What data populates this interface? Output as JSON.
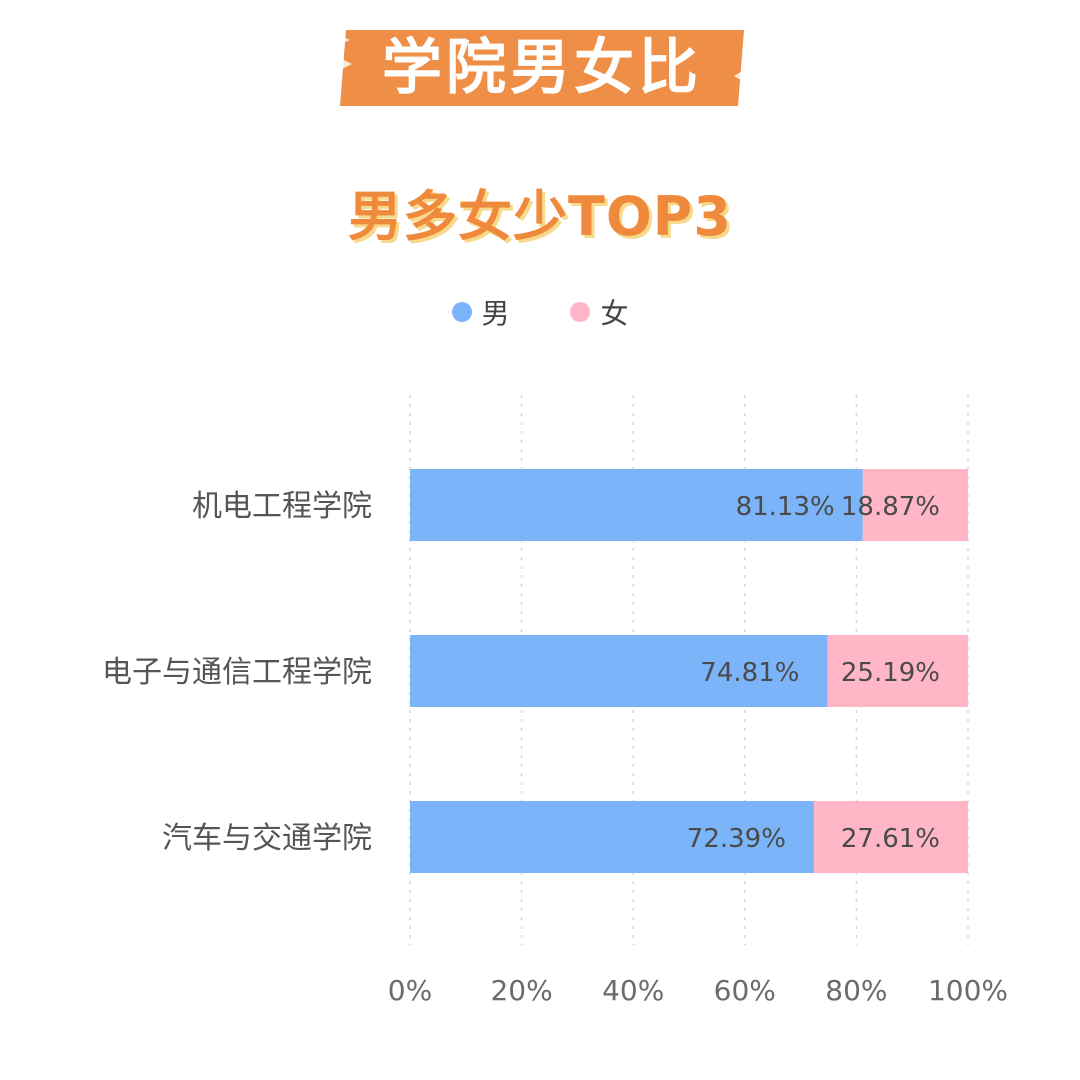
{
  "header": {
    "title": "学院男女比",
    "subtitle": "男多女少TOP3"
  },
  "colors": {
    "banner": "#ef8f47",
    "male": "#7bb4f8",
    "female": "#ffb6c6",
    "subtitle": "#ef8a3c",
    "subtitle_shadow": "#f7d98c"
  },
  "chart_data": {
    "type": "bar",
    "orientation": "horizontal",
    "stacked": true,
    "legend_position": "top",
    "grid": true,
    "categories": [
      "机电工程学院",
      "电子与通信工程学院",
      "汽车与交通学院"
    ],
    "series": [
      {
        "name": "男",
        "values": [
          81.13,
          74.81,
          72.39
        ],
        "labels": [
          "81.13%",
          "74.81%",
          "72.39%"
        ]
      },
      {
        "name": "女",
        "values": [
          18.87,
          25.19,
          27.61
        ],
        "labels": [
          "18.87%",
          "25.19%",
          "27.61%"
        ]
      }
    ],
    "xlim": [
      0,
      100
    ],
    "x_ticks": [
      "0%",
      "20%",
      "40%",
      "60%",
      "80%",
      "100%"
    ]
  }
}
